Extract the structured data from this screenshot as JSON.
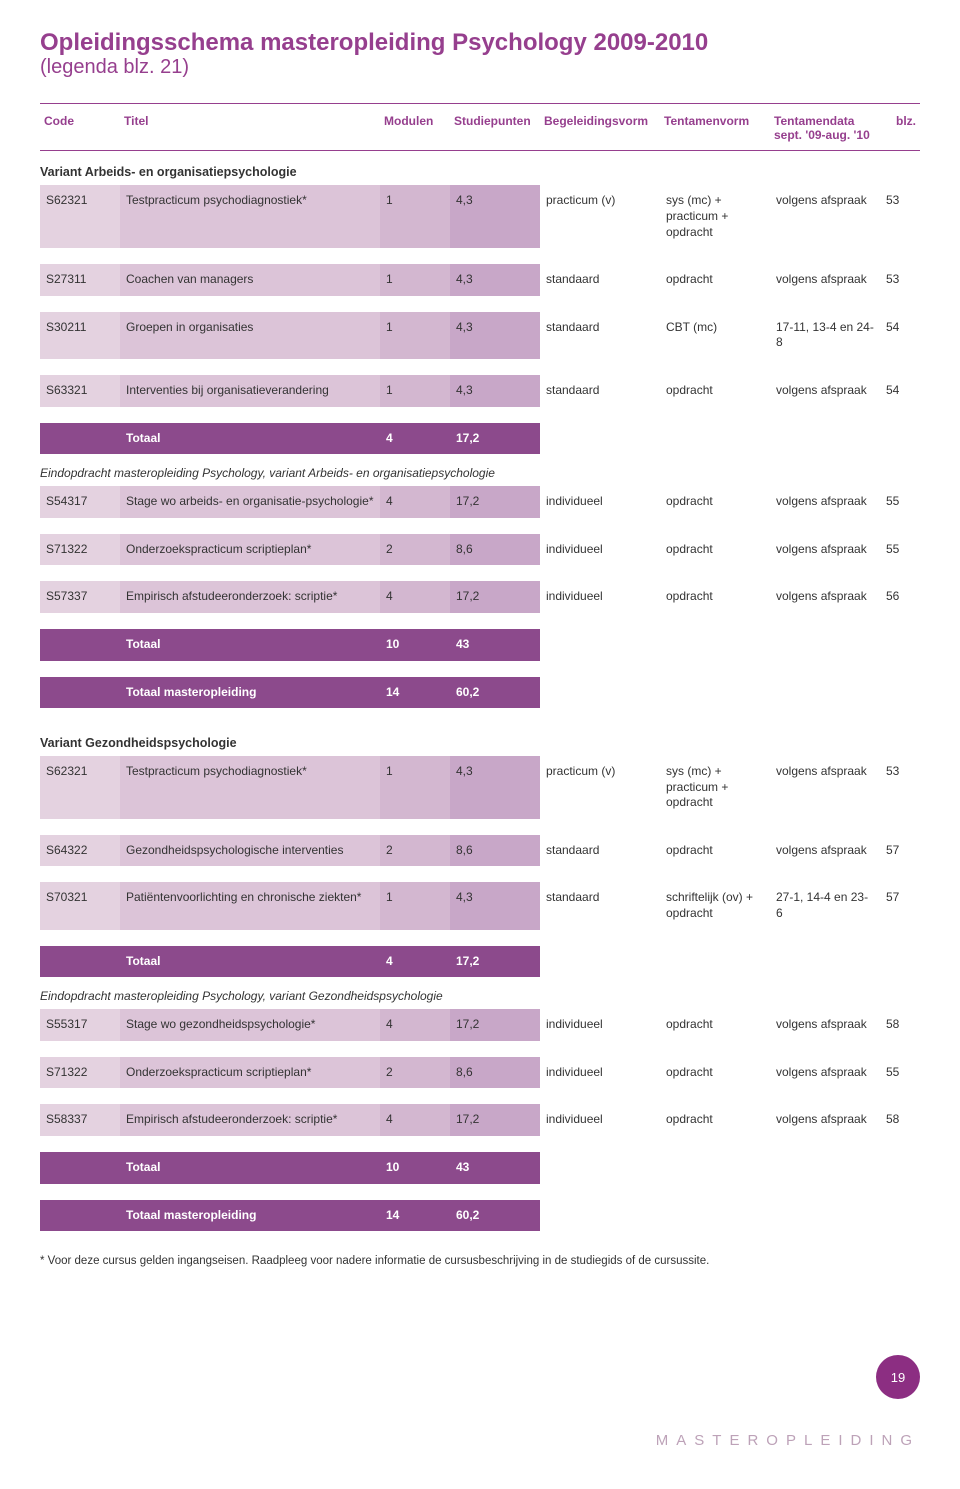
{
  "colors": {
    "accent": "#963f8e",
    "totalRow": "#8c4a8c",
    "shade1": "#e4d2e0",
    "shade2": "#dcc4d8",
    "shade3": "#d3b7d0",
    "shade4": "#c8a7c8",
    "badge": "#8c2e82",
    "footerText": "#bda2b8",
    "bodyText": "#333333",
    "background": "#ffffff"
  },
  "title": "Opleidingsschema masteropleiding Psychology 2009-2010",
  "subtitle": "(legenda blz. 21)",
  "headers": {
    "code": "Code",
    "titel": "Titel",
    "modulen": "Modulen",
    "studiepunten": "Studiepunten",
    "begeleidingsvorm": "Begeleidingsvorm",
    "tentamenvorm": "Tentamenvorm",
    "tentamendata": "Tentamendata sept. '09-aug. '10",
    "blz": "blz."
  },
  "variantA": {
    "label": "Variant Arbeids- en organisatiepsychologie",
    "rows": [
      {
        "code": "S62321",
        "titel": "Testpracticum psychodiagnostiek*",
        "mod": "1",
        "pts": "4,3",
        "bgv": "practicum (v)",
        "tv": "sys (mc) + practicum + opdracht",
        "td": "volgens afspraak",
        "blz": "53"
      },
      {
        "code": "S27311",
        "titel": "Coachen van managers",
        "mod": "1",
        "pts": "4,3",
        "bgv": "standaard",
        "tv": "opdracht",
        "td": "volgens afspraak",
        "blz": "53"
      },
      {
        "code": "S30211",
        "titel": "Groepen in organisaties",
        "mod": "1",
        "pts": "4,3",
        "bgv": "standaard",
        "tv": "CBT (mc)",
        "td": "17-11, 13-4 en 24-8",
        "blz": "54"
      },
      {
        "code": "S63321",
        "titel": "Interventies bij organisatieverandering",
        "mod": "1",
        "pts": "4,3",
        "bgv": "standaard",
        "tv": "opdracht",
        "td": "volgens afspraak",
        "blz": "54"
      }
    ],
    "total": {
      "label": "Totaal",
      "mod": "4",
      "pts": "17,2"
    },
    "eindLabel": "Eindopdracht masteropleiding Psychology, variant Arbeids- en organisatiepsychologie",
    "rows2": [
      {
        "code": "S54317",
        "titel": "Stage wo arbeids- en organisatie-psychologie*",
        "mod": "4",
        "pts": "17,2",
        "bgv": "individueel",
        "tv": "opdracht",
        "td": "volgens afspraak",
        "blz": "55"
      },
      {
        "code": "S71322",
        "titel": "Onderzoekspracticum scriptieplan*",
        "mod": "2",
        "pts": "8,6",
        "bgv": "individueel",
        "tv": "opdracht",
        "td": "volgens afspraak",
        "blz": "55"
      },
      {
        "code": "S57337",
        "titel": "Empirisch afstudeeronderzoek: scriptie*",
        "mod": "4",
        "pts": "17,2",
        "bgv": "individueel",
        "tv": "opdracht",
        "td": "volgens afspraak",
        "blz": "56"
      }
    ],
    "total2": {
      "label": "Totaal",
      "mod": "10",
      "pts": "43"
    },
    "grand": {
      "label": "Totaal masteropleiding",
      "mod": "14",
      "pts": "60,2"
    }
  },
  "variantB": {
    "label": "Variant Gezondheidspsychologie",
    "rows": [
      {
        "code": "S62321",
        "titel": "Testpracticum psychodiagnostiek*",
        "mod": "1",
        "pts": "4,3",
        "bgv": "practicum (v)",
        "tv": "sys (mc) + practicum + opdracht",
        "td": "volgens afspraak",
        "blz": "53"
      },
      {
        "code": "S64322",
        "titel": "Gezondheidspsychologische interventies",
        "mod": "2",
        "pts": "8,6",
        "bgv": "standaard",
        "tv": "opdracht",
        "td": "volgens afspraak",
        "blz": "57"
      },
      {
        "code": "S70321",
        "titel": "Patiëntenvoorlichting en chronische ziekten*",
        "mod": "1",
        "pts": "4,3",
        "bgv": "standaard",
        "tv": "schriftelijk (ov) + opdracht",
        "td": "27-1, 14-4 en 23-6",
        "blz": "57"
      }
    ],
    "total": {
      "label": "Totaal",
      "mod": "4",
      "pts": "17,2"
    },
    "eindLabel": "Eindopdracht masteropleiding Psychology, variant Gezondheidspsychologie",
    "rows2": [
      {
        "code": "S55317",
        "titel": "Stage wo gezondheidspsychologie*",
        "mod": "4",
        "pts": "17,2",
        "bgv": "individueel",
        "tv": "opdracht",
        "td": "volgens afspraak",
        "blz": "58"
      },
      {
        "code": "S71322",
        "titel": "Onderzoekspracticum scriptieplan*",
        "mod": "2",
        "pts": "8,6",
        "bgv": "individueel",
        "tv": "opdracht",
        "td": "volgens afspraak",
        "blz": "55"
      },
      {
        "code": "S58337",
        "titel": "Empirisch afstudeeronderzoek: scriptie*",
        "mod": "4",
        "pts": "17,2",
        "bgv": "individueel",
        "tv": "opdracht",
        "td": "volgens afspraak",
        "blz": "58"
      }
    ],
    "total2": {
      "label": "Totaal",
      "mod": "10",
      "pts": "43"
    },
    "grand": {
      "label": "Totaal masteropleiding",
      "mod": "14",
      "pts": "60,2"
    }
  },
  "footnote": "* Voor deze cursus gelden ingangseisen. Raadpleeg voor nadere informatie de cursusbeschrijving in de studiegids of de cursussite.",
  "pageNumber": "19",
  "footerLabel": "MASTEROPLEIDING"
}
